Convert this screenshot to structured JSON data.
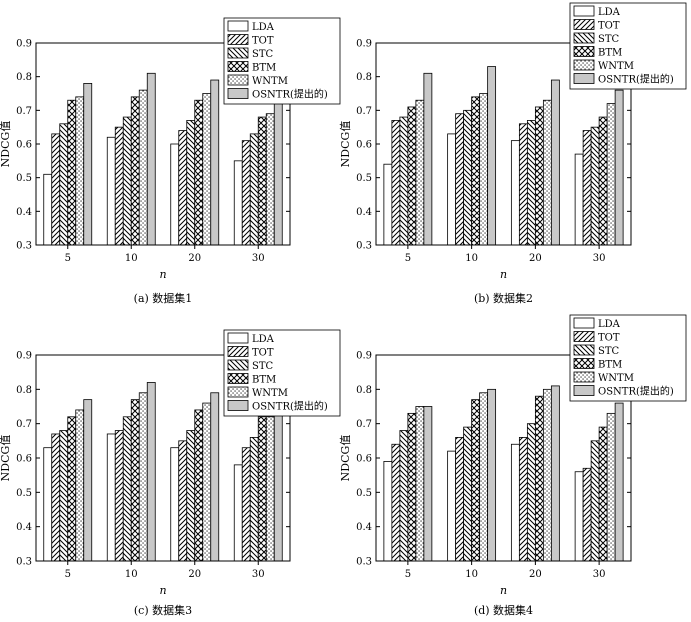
{
  "legend_labels": [
    "LDA",
    "TOT",
    "STC",
    "BTM",
    "WNTM",
    "OSNTR(提出的)"
  ],
  "chart_data": [
    {
      "type": "bar",
      "caption": "(a) 数据集1",
      "categories": [
        "5",
        "10",
        "20",
        "30"
      ],
      "xlabel": "n",
      "ylabel": "NDCG值",
      "ylim": [
        0.3,
        0.9
      ],
      "yticks": [
        "0.3",
        "0.4",
        "0.5",
        "0.6",
        "0.7",
        "0.8",
        "0.9"
      ],
      "legend": "top-right",
      "series": [
        {
          "name": "LDA",
          "values": [
            0.51,
            0.62,
            0.6,
            0.55
          ]
        },
        {
          "name": "TOT",
          "values": [
            0.63,
            0.65,
            0.64,
            0.61
          ]
        },
        {
          "name": "STC",
          "values": [
            0.66,
            0.68,
            0.67,
            0.63
          ]
        },
        {
          "name": "BTM",
          "values": [
            0.73,
            0.74,
            0.73,
            0.68
          ]
        },
        {
          "name": "WNTM",
          "values": [
            0.74,
            0.76,
            0.75,
            0.69
          ]
        },
        {
          "name": "OSNTR(提出的)",
          "values": [
            0.78,
            0.81,
            0.79,
            0.72
          ]
        }
      ]
    },
    {
      "type": "bar",
      "caption": "(b) 数据集2",
      "categories": [
        "5",
        "10",
        "20",
        "30"
      ],
      "xlabel": "n",
      "ylabel": "NDCG值",
      "ylim": [
        0.3,
        0.9
      ],
      "yticks": [
        "0.3",
        "0.4",
        "0.5",
        "0.6",
        "0.7",
        "0.8",
        "0.9"
      ],
      "legend": "top-right",
      "series": [
        {
          "name": "LDA",
          "values": [
            0.54,
            0.63,
            0.61,
            0.57
          ]
        },
        {
          "name": "TOT",
          "values": [
            0.67,
            0.69,
            0.66,
            0.64
          ]
        },
        {
          "name": "STC",
          "values": [
            0.68,
            0.7,
            0.67,
            0.65
          ]
        },
        {
          "name": "BTM",
          "values": [
            0.71,
            0.74,
            0.71,
            0.68
          ]
        },
        {
          "name": "WNTM",
          "values": [
            0.73,
            0.75,
            0.73,
            0.72
          ]
        },
        {
          "name": "OSNTR(提出的)",
          "values": [
            0.81,
            0.83,
            0.79,
            0.76
          ]
        }
      ]
    },
    {
      "type": "bar",
      "caption": "(c) 数据集3",
      "categories": [
        "5",
        "10",
        "20",
        "30"
      ],
      "xlabel": "n",
      "ylabel": "NDCG值",
      "ylim": [
        0.3,
        0.9
      ],
      "yticks": [
        "0.3",
        "0.4",
        "0.5",
        "0.6",
        "0.7",
        "0.8",
        "0.9"
      ],
      "legend": "top-right",
      "series": [
        {
          "name": "LDA",
          "values": [
            0.63,
            0.67,
            0.63,
            0.58
          ]
        },
        {
          "name": "TOT",
          "values": [
            0.67,
            0.68,
            0.65,
            0.63
          ]
        },
        {
          "name": "STC",
          "values": [
            0.68,
            0.72,
            0.68,
            0.66
          ]
        },
        {
          "name": "BTM",
          "values": [
            0.72,
            0.77,
            0.74,
            0.72
          ]
        },
        {
          "name": "WNTM",
          "values": [
            0.74,
            0.79,
            0.76,
            0.72
          ]
        },
        {
          "name": "OSNTR(提出的)",
          "values": [
            0.77,
            0.82,
            0.79,
            0.73
          ]
        }
      ]
    },
    {
      "type": "bar",
      "caption": "(d) 数据集4",
      "categories": [
        "5",
        "10",
        "20",
        "30"
      ],
      "xlabel": "n",
      "ylabel": "NDCG值",
      "ylim": [
        0.3,
        0.9
      ],
      "yticks": [
        "0.3",
        "0.4",
        "0.5",
        "0.6",
        "0.7",
        "0.8",
        "0.9"
      ],
      "legend": "top-right",
      "series": [
        {
          "name": "LDA",
          "values": [
            0.59,
            0.62,
            0.64,
            0.56
          ]
        },
        {
          "name": "TOT",
          "values": [
            0.64,
            0.66,
            0.66,
            0.57
          ]
        },
        {
          "name": "STC",
          "values": [
            0.68,
            0.69,
            0.7,
            0.65
          ]
        },
        {
          "name": "BTM",
          "values": [
            0.73,
            0.77,
            0.78,
            0.69
          ]
        },
        {
          "name": "WNTM",
          "values": [
            0.75,
            0.79,
            0.8,
            0.73
          ]
        },
        {
          "name": "OSNTR(提出的)",
          "values": [
            0.75,
            0.8,
            0.81,
            0.76
          ]
        }
      ]
    }
  ]
}
